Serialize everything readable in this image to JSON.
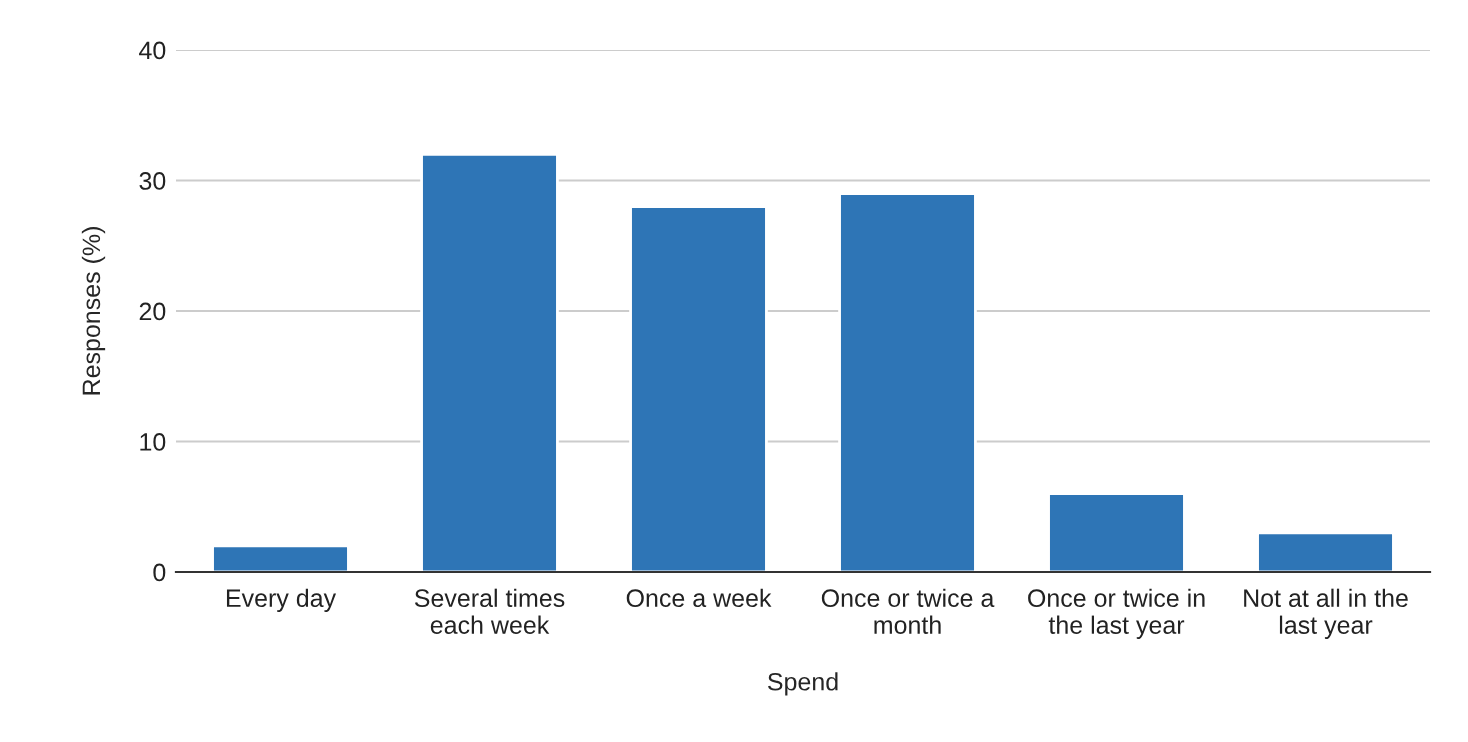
{
  "chart_data": {
    "type": "bar",
    "categories": [
      "Every day",
      "Several times each week",
      "Once a week",
      "Once or twice a month",
      "Once or twice in the last year",
      "Not at all in the last year"
    ],
    "values": [
      2,
      32,
      28,
      29,
      6,
      3
    ],
    "color": "#2e75b6",
    "xlabel": "Spend",
    "ylabel": "Responses (%)",
    "ylim": [
      0,
      40
    ],
    "yticks": [
      0,
      10,
      20,
      30,
      40
    ],
    "grid": "y"
  }
}
